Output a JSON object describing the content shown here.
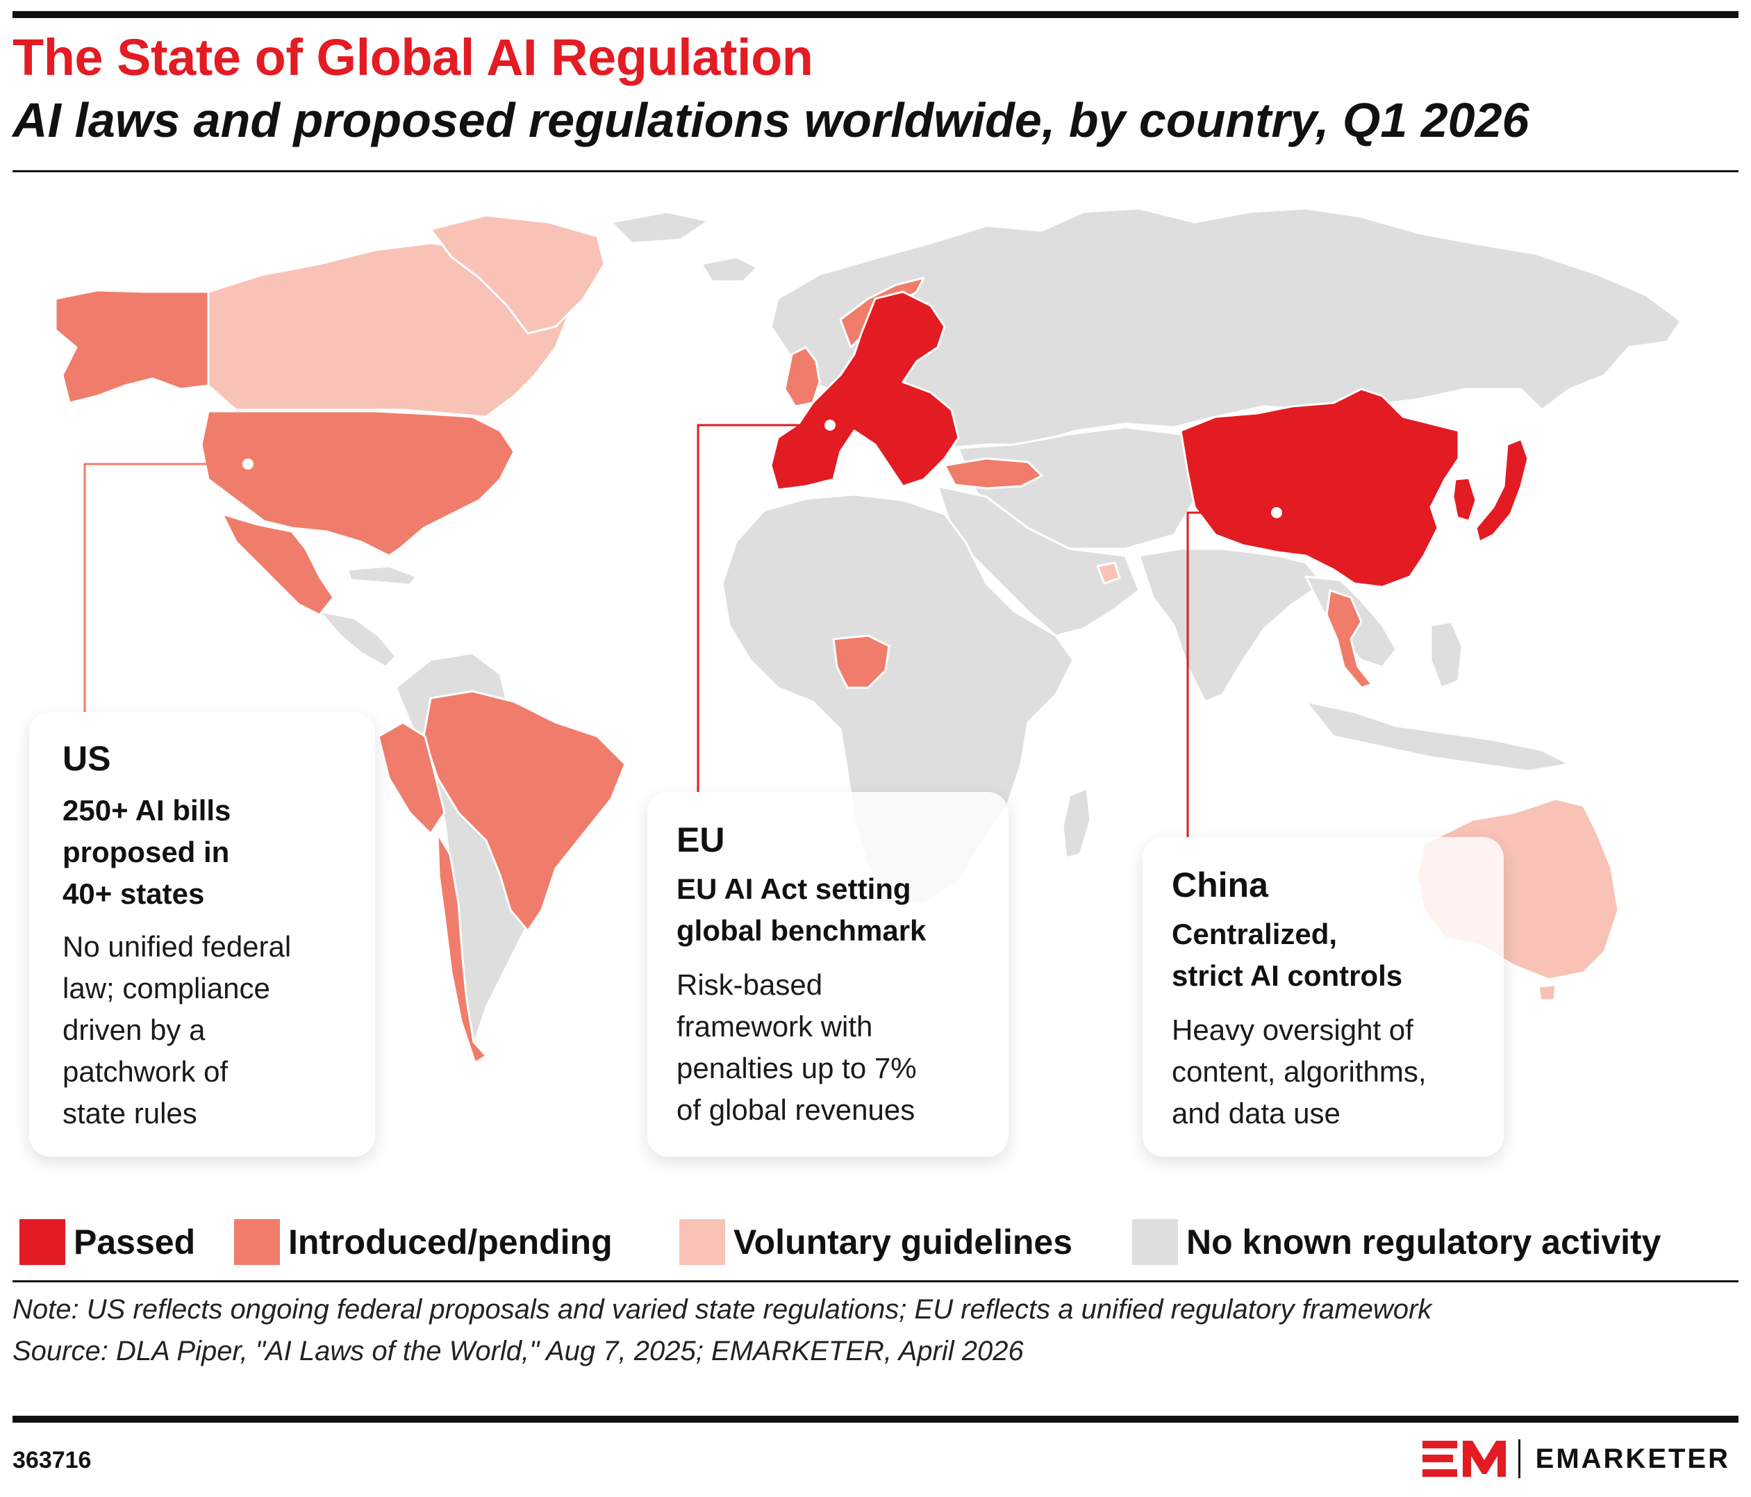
{
  "header": {
    "title": "The State of Global AI Regulation",
    "subtitle": "AI laws and proposed regulations worldwide, by country, Q1 2026"
  },
  "colors": {
    "title": "#e31b23",
    "passed": "#e31b23",
    "introduced": "#f07d6b",
    "voluntary": "#f8c3b6",
    "none": "#dedede",
    "background": "#ffffff"
  },
  "legend": [
    {
      "label": "Passed",
      "color": "#e31b23"
    },
    {
      "label": "Introduced/pending",
      "color": "#f07d6b"
    },
    {
      "label": "Voluntary guidelines",
      "color": "#f8c3b6"
    },
    {
      "label": "No known regulatory activity",
      "color": "#dedede"
    }
  ],
  "callouts": {
    "us": {
      "name": "US",
      "headline": [
        "250+ AI bills",
        "proposed in",
        "40+ states"
      ],
      "body": [
        "No unified federal",
        "law; compliance",
        "driven by a",
        "patchwork of",
        "state rules"
      ],
      "status": "Introduced/pending"
    },
    "eu": {
      "name": "EU",
      "headline": [
        "EU AI Act setting",
        "global benchmark"
      ],
      "body": [
        "Risk-based",
        "framework with",
        "penalties up to 7%",
        "of global revenues"
      ],
      "status": "Passed"
    },
    "china": {
      "name": "China",
      "headline": [
        "Centralized,",
        "strict AI controls"
      ],
      "body": [
        "Heavy oversight of",
        "content, algorithms,",
        "and data use"
      ],
      "status": "Passed"
    }
  },
  "regions": {
    "passed": [
      "China",
      "Japan",
      "South Korea",
      "EU member states"
    ],
    "introduced": [
      "United States",
      "Mexico",
      "Brazil",
      "Peru",
      "Chile",
      "United Kingdom",
      "Norway",
      "Turkey",
      "Nigeria",
      "Thailand",
      "Alaska (US)"
    ],
    "voluntary": [
      "Canada",
      "Greenland",
      "Australia",
      "United Arab Emirates"
    ]
  },
  "footer": {
    "note": "Note: US reflects ongoing federal proposals and varied state regulations; EU reflects a unified regulatory framework",
    "source": "Source: DLA Piper, \"AI Laws of the World,\" Aug 7, 2025; EMARKETER, April 2026",
    "chart_id": "363716",
    "brand": "EMARKETER",
    "brand_mark": "EM"
  }
}
